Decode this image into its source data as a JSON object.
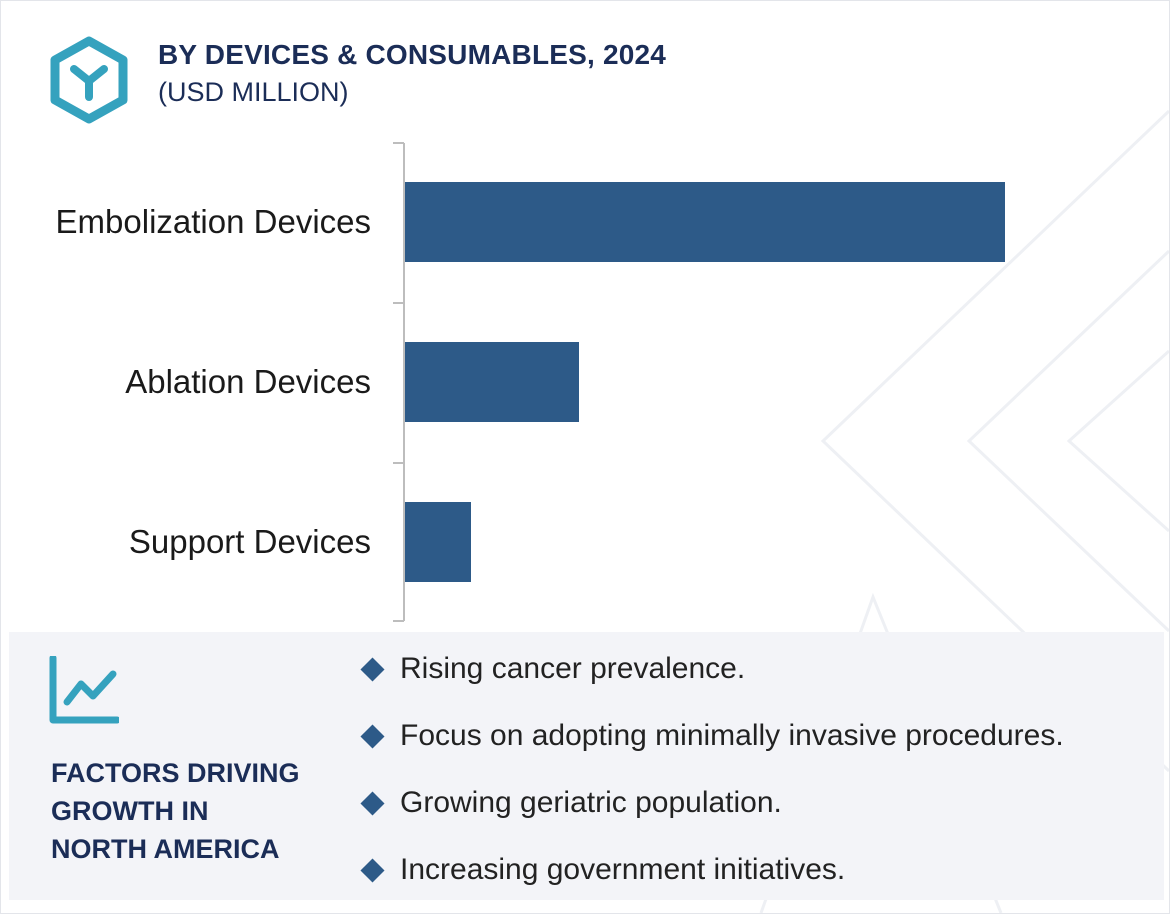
{
  "header": {
    "title": "BY DEVICES & CONSUMABLES, 2024",
    "subtitle": "(USD MILLION)",
    "logo_icon": "cube-hexagon-icon"
  },
  "chart_data": {
    "type": "bar",
    "orientation": "horizontal",
    "title": "BY DEVICES & CONSUMABLES, 2024",
    "subtitle": "(USD MILLION)",
    "categories": [
      "Embolization Devices",
      "Ablation Devices",
      "Support Devices"
    ],
    "values": [
      100,
      29,
      11
    ],
    "values_note": "relative",
    "xlim": [
      0,
      100
    ],
    "bar_color": "#2d5a88",
    "grid": false,
    "legend": "none"
  },
  "factors": {
    "icon": "line-chart-icon",
    "title_lines": [
      "FACTORS DRIVING",
      "GROWTH IN",
      "NORTH AMERICA"
    ],
    "items": [
      "Rising cancer prevalence.",
      "Focus on adopting minimally invasive procedures.",
      "Growing geriatric population.",
      "Increasing government initiatives."
    ]
  },
  "colors": {
    "accent": "#2d5a88",
    "title": "#1b2d57",
    "icon_teal": "#35a2be",
    "panel_bg": "#f3f4f8"
  }
}
